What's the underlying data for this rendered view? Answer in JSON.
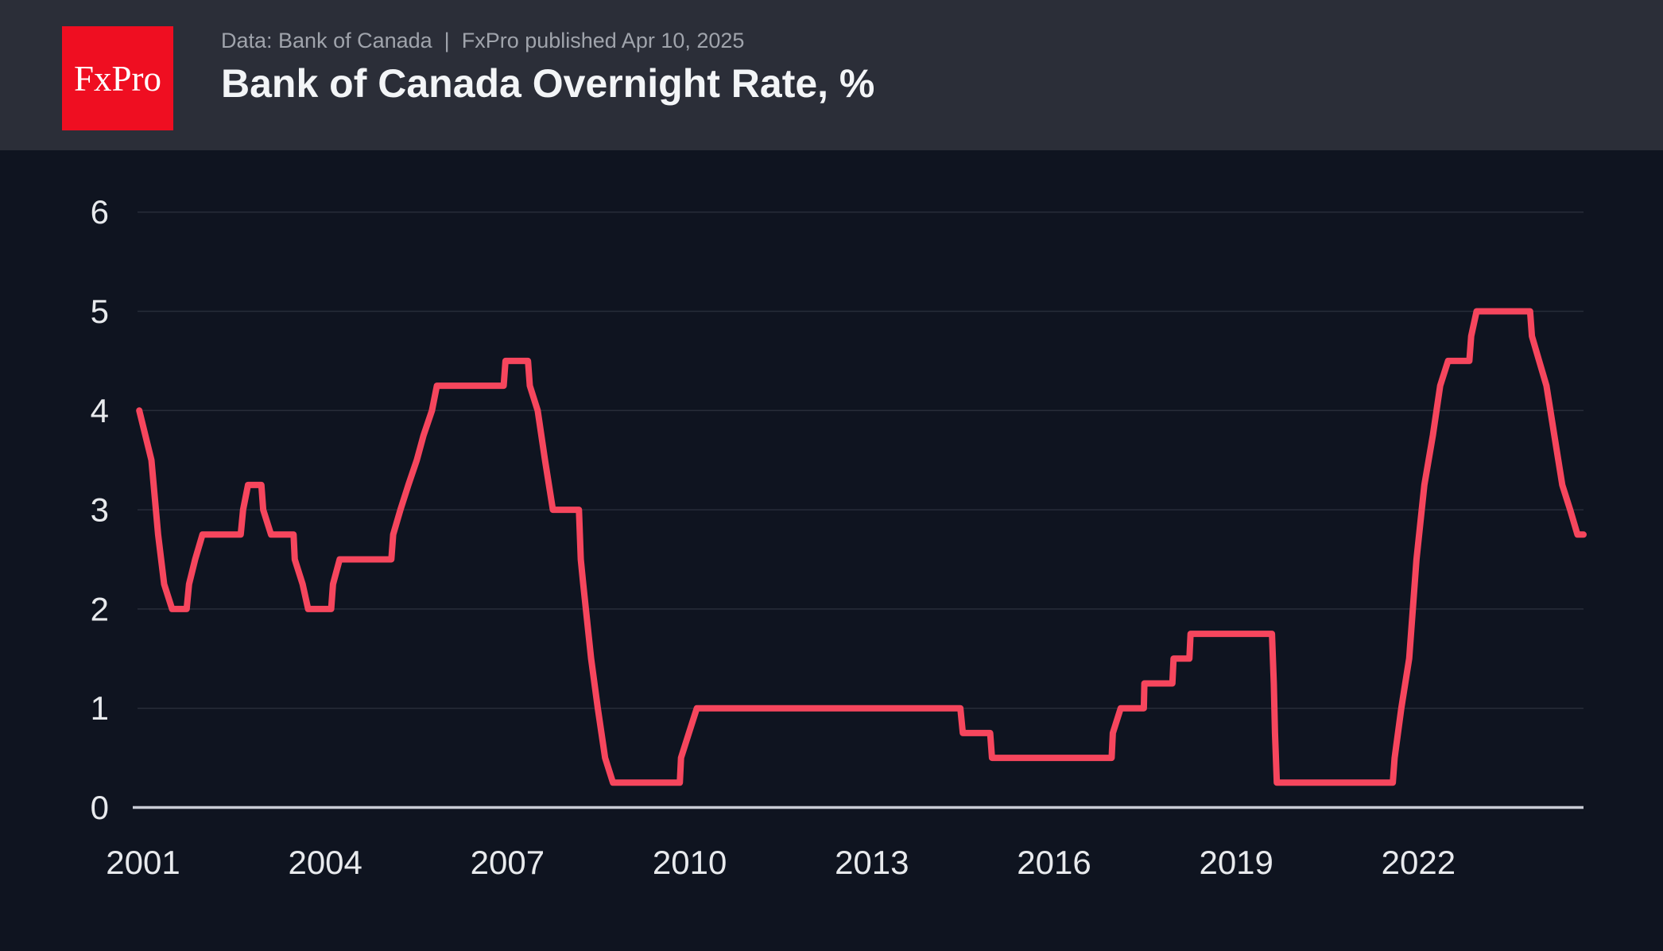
{
  "header": {
    "logo_text": "FxPro",
    "subtitle": "Data: Bank of Canada  |  FxPro published Apr 10, 2025",
    "title": "Bank of Canada Overnight Rate, %"
  },
  "colors": {
    "header_bg": "#2b2e38",
    "chart_bg": "#0f1420",
    "logo_red": "#ef0e21",
    "logo_text": "#ffffff",
    "line_red": "#f6465d",
    "gridline": "#272c39",
    "axis_line": "#c9ccd5",
    "tick_label": "#e8eaed",
    "subtitle_gray": "#a0a4ac",
    "title_white": "#f3f5f7"
  },
  "chart_data": {
    "type": "line",
    "title": "Bank of Canada Overnight Rate, %",
    "xlabel": "",
    "ylabel": "",
    "x_ticks": [
      2001,
      2004,
      2007,
      2010,
      2013,
      2016,
      2019,
      2022
    ],
    "y_ticks": [
      0,
      1,
      2,
      3,
      4,
      5,
      6
    ],
    "xlim": [
      2001.0,
      2025.4
    ],
    "ylim": [
      0,
      6
    ],
    "grid": true,
    "legend_position": "none",
    "series": [
      {
        "name": "Bank of Canada Overnight Rate %",
        "color": "#f6465d",
        "points": [
          [
            2001.5,
            4.0
          ],
          [
            2001.7,
            3.5
          ],
          [
            2001.81,
            2.75
          ],
          [
            2001.91,
            2.25
          ],
          [
            2002.04,
            2.0
          ],
          [
            2002.28,
            2.0
          ],
          [
            2002.32,
            2.25
          ],
          [
            2002.42,
            2.5
          ],
          [
            2002.54,
            2.75
          ],
          [
            2003.17,
            2.75
          ],
          [
            2003.21,
            3.0
          ],
          [
            2003.29,
            3.25
          ],
          [
            2003.51,
            3.25
          ],
          [
            2003.54,
            3.0
          ],
          [
            2003.67,
            2.75
          ],
          [
            2004.04,
            2.75
          ],
          [
            2004.06,
            2.5
          ],
          [
            2004.19,
            2.25
          ],
          [
            2004.28,
            2.0
          ],
          [
            2004.66,
            2.0
          ],
          [
            2004.69,
            2.25
          ],
          [
            2004.8,
            2.5
          ],
          [
            2005.65,
            2.5
          ],
          [
            2005.68,
            2.75
          ],
          [
            2005.8,
            3.0
          ],
          [
            2005.93,
            3.25
          ],
          [
            2006.07,
            3.5
          ],
          [
            2006.18,
            3.75
          ],
          [
            2006.32,
            4.0
          ],
          [
            2006.4,
            4.25
          ],
          [
            2007.5,
            4.25
          ],
          [
            2007.53,
            4.5
          ],
          [
            2007.9,
            4.5
          ],
          [
            2007.93,
            4.25
          ],
          [
            2008.06,
            4.0
          ],
          [
            2008.18,
            3.5
          ],
          [
            2008.31,
            3.0
          ],
          [
            2008.74,
            3.0
          ],
          [
            2008.77,
            2.5
          ],
          [
            2008.81,
            2.25
          ],
          [
            2008.94,
            1.5
          ],
          [
            2009.05,
            1.0
          ],
          [
            2009.17,
            0.5
          ],
          [
            2009.3,
            0.25
          ],
          [
            2010.4,
            0.25
          ],
          [
            2010.42,
            0.5
          ],
          [
            2010.55,
            0.75
          ],
          [
            2010.68,
            1.0
          ],
          [
            2015.02,
            1.0
          ],
          [
            2015.06,
            0.75
          ],
          [
            2015.51,
            0.75
          ],
          [
            2015.54,
            0.5
          ],
          [
            2017.51,
            0.5
          ],
          [
            2017.53,
            0.75
          ],
          [
            2017.66,
            1.0
          ],
          [
            2018.04,
            1.0
          ],
          [
            2018.05,
            1.25
          ],
          [
            2018.51,
            1.25
          ],
          [
            2018.53,
            1.5
          ],
          [
            2018.79,
            1.5
          ],
          [
            2018.81,
            1.75
          ],
          [
            2020.15,
            1.75
          ],
          [
            2020.18,
            1.25
          ],
          [
            2020.2,
            0.75
          ],
          [
            2020.23,
            0.25
          ],
          [
            2022.14,
            0.25
          ],
          [
            2022.17,
            0.5
          ],
          [
            2022.28,
            1.0
          ],
          [
            2022.41,
            1.5
          ],
          [
            2022.53,
            2.5
          ],
          [
            2022.66,
            3.25
          ],
          [
            2022.8,
            3.75
          ],
          [
            2022.92,
            4.25
          ],
          [
            2023.05,
            4.5
          ],
          [
            2023.4,
            4.5
          ],
          [
            2023.43,
            4.75
          ],
          [
            2023.52,
            5.0
          ],
          [
            2024.4,
            5.0
          ],
          [
            2024.43,
            4.75
          ],
          [
            2024.55,
            4.5
          ],
          [
            2024.67,
            4.25
          ],
          [
            2024.8,
            3.75
          ],
          [
            2024.93,
            3.25
          ],
          [
            2025.06,
            3.0
          ],
          [
            2025.18,
            2.75
          ],
          [
            2025.28,
            2.75
          ]
        ]
      }
    ]
  }
}
